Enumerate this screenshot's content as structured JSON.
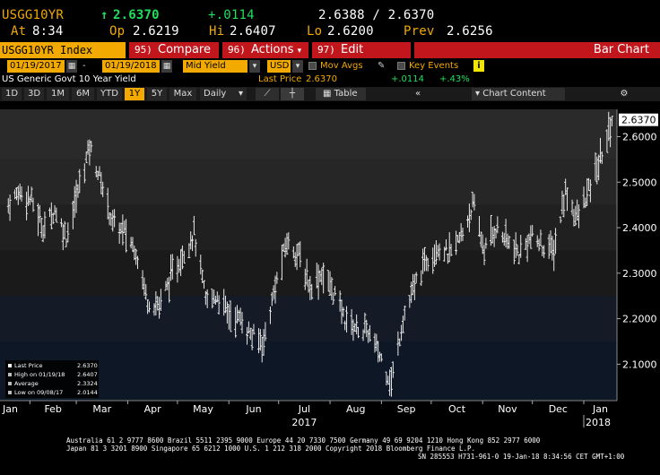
{
  "quote": {
    "ticker": "USGG10YR",
    "arrow": "↑",
    "last": "2.6370",
    "change": "+.0114",
    "bid_ask": "2.6388 / 2.6370",
    "at_label": "At",
    "at_time": "8:34",
    "open_label": "Op",
    "open": "2.6219",
    "high_label": "Hi",
    "high": "2.6407",
    "low_label": "Lo",
    "low": "2.6200",
    "prev_label": "Prev",
    "prev": "2.6256"
  },
  "function_bar": {
    "security": "USGG10YR Index",
    "compare_num": "95)",
    "compare_label": "Compare",
    "actions_num": "96)",
    "actions_label": "Actions",
    "edit_num": "97)",
    "edit_label": "Edit",
    "chart_title": "Bar Chart"
  },
  "controls": {
    "start_date": "01/19/2017",
    "end_date": "01/19/2018",
    "field": "Mid Yield",
    "currency": "USD",
    "mov_avgs": "Mov Avgs",
    "key_events": "Key Events",
    "dash": "-",
    "info_icon": "i"
  },
  "description": {
    "name": "US Generic Govt 10 Year Yield",
    "last_price_label": "Last Price",
    "last_price": "2.6370",
    "change": "+.0114",
    "pct_change": "+.43%"
  },
  "toolbar": {
    "periods": [
      "1D",
      "3D",
      "1M",
      "6M",
      "YTD",
      "1Y",
      "5Y",
      "Max"
    ],
    "active_period": "1Y",
    "frequency": "Daily",
    "table_label": "Table",
    "back_label": "«",
    "chart_content_label": "Chart Content",
    "gear_icon": "gear-icon"
  },
  "chart_data": {
    "type": "bar",
    "style": "ohlc",
    "y_ticks": [
      "2.1000",
      "2.2000",
      "2.3000",
      "2.4000",
      "2.5000",
      "2.6000"
    ],
    "ylim": [
      2.02,
      2.66
    ],
    "last_value_label": "2.6370",
    "x_month_labels": [
      "Jan",
      "Feb",
      "Mar",
      "Apr",
      "May",
      "Jun",
      "Jul",
      "Aug",
      "Sep",
      "Oct",
      "Nov",
      "Dec",
      "Jan"
    ],
    "x_year_labels": [
      "2017",
      "2018"
    ],
    "x": [
      "2017-01-19",
      "2017-01-26",
      "2017-02-02",
      "2017-02-09",
      "2017-02-16",
      "2017-02-23",
      "2017-03-02",
      "2017-03-09",
      "2017-03-16",
      "2017-03-23",
      "2017-03-30",
      "2017-04-06",
      "2017-04-13",
      "2017-04-20",
      "2017-04-27",
      "2017-05-04",
      "2017-05-11",
      "2017-05-18",
      "2017-05-25",
      "2017-06-01",
      "2017-06-08",
      "2017-06-15",
      "2017-06-22",
      "2017-06-29",
      "2017-07-06",
      "2017-07-13",
      "2017-07-20",
      "2017-07-27",
      "2017-08-03",
      "2017-08-10",
      "2017-08-17",
      "2017-08-24",
      "2017-08-31",
      "2017-09-07",
      "2017-09-14",
      "2017-09-21",
      "2017-09-28",
      "2017-10-05",
      "2017-10-12",
      "2017-10-19",
      "2017-10-26",
      "2017-11-02",
      "2017-11-09",
      "2017-11-16",
      "2017-11-23",
      "2017-11-30",
      "2017-12-07",
      "2017-12-14",
      "2017-12-21",
      "2017-12-28",
      "2018-01-04",
      "2018-01-11",
      "2018-01-18"
    ],
    "series": [
      {
        "values": [
          2.45,
          2.48,
          2.46,
          2.4,
          2.44,
          2.38,
          2.48,
          2.58,
          2.5,
          2.41,
          2.39,
          2.35,
          2.24,
          2.23,
          2.29,
          2.34,
          2.39,
          2.24,
          2.25,
          2.21,
          2.2,
          2.16,
          2.15,
          2.27,
          2.37,
          2.34,
          2.27,
          2.3,
          2.26,
          2.2,
          2.18,
          2.17,
          2.12,
          2.06,
          2.2,
          2.27,
          2.33,
          2.36,
          2.34,
          2.38,
          2.45,
          2.35,
          2.4,
          2.37,
          2.34,
          2.38,
          2.36,
          2.35,
          2.48,
          2.42,
          2.48,
          2.55,
          2.637
        ]
      }
    ],
    "legend": [
      {
        "label": "Last Price",
        "value": "2.6370"
      },
      {
        "label": "High on 01/19/18",
        "value": "2.6407"
      },
      {
        "label": "Average",
        "value": "2.3324"
      },
      {
        "label": "Low on 09/08/17",
        "value": "2.0144"
      }
    ],
    "legend_position": "bottom-left",
    "grid": false
  },
  "footer": {
    "line1": "Australia 61 2 9777 8600 Brazil 5511 2395 9000 Europe 44 20 7330 7500 Germany 49 69 9204 1210 Hong Kong 852 2977 6000",
    "line2": "Japan 81 3 3201 8900        Singapore 65 6212 1000        U.S. 1 212 318 2000              Copyright 2018 Bloomberg Finance L.P.",
    "line3": "SN 285553 H731-961-0 19-Jan-18  8:34:56 CET  GMT+1:00"
  }
}
